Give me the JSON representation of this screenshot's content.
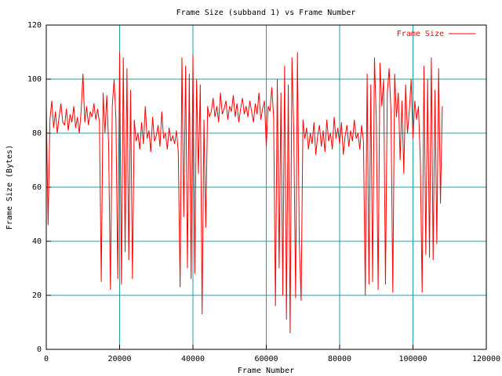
{
  "chart_data": {
    "type": "line",
    "title": "Frame Size (subband 1) vs Frame Number",
    "xlabel": "Frame Number",
    "ylabel": "Frame Size (Bytes)",
    "x": [
      0,
      500,
      1000,
      1500,
      2000,
      2500,
      3000,
      3500,
      4000,
      4500,
      5000,
      5500,
      6000,
      6500,
      7000,
      7500,
      8000,
      8500,
      9000,
      9500,
      10000,
      10500,
      11000,
      11500,
      12000,
      12500,
      13000,
      13500,
      14000,
      14500,
      15000,
      15500,
      16000,
      16500,
      17000,
      17500,
      18000,
      18500,
      19000,
      19500,
      20000,
      20500,
      21000,
      21500,
      22000,
      22500,
      23000,
      23500,
      24000,
      24500,
      25000,
      25500,
      26000,
      26500,
      27000,
      27500,
      28000,
      28500,
      29000,
      29500,
      30000,
      30500,
      31000,
      31500,
      32000,
      32500,
      33000,
      33500,
      34000,
      34500,
      35000,
      35500,
      36000,
      36500,
      37000,
      37500,
      38000,
      38500,
      39000,
      39500,
      40000,
      40500,
      41000,
      41500,
      42000,
      42500,
      43000,
      43500,
      44000,
      44500,
      45000,
      45500,
      46000,
      46500,
      47000,
      47500,
      48000,
      48500,
      49000,
      49500,
      50000,
      50500,
      51000,
      51500,
      52000,
      52500,
      53000,
      53500,
      54000,
      54500,
      55000,
      55500,
      56000,
      56500,
      57000,
      57500,
      58000,
      58500,
      59000,
      59500,
      60000,
      60500,
      61000,
      61500,
      62000,
      62500,
      63000,
      63500,
      64000,
      64500,
      65000,
      65500,
      66000,
      66500,
      67000,
      67500,
      68000,
      68500,
      69000,
      69500,
      70000,
      70500,
      71000,
      71500,
      72000,
      72500,
      73000,
      73500,
      74000,
      74500,
      75000,
      75500,
      76000,
      76500,
      77000,
      77500,
      78000,
      78500,
      79000,
      79500,
      80000,
      80500,
      81000,
      81500,
      82000,
      82500,
      83000,
      83500,
      84000,
      84500,
      85000,
      85500,
      86000,
      86500,
      87000,
      87500,
      88000,
      88500,
      89000,
      89500,
      90000,
      90500,
      91000,
      91500,
      92000,
      92500,
      93000,
      93500,
      94000,
      94500,
      95000,
      95500,
      96000,
      96500,
      97000,
      97500,
      98000,
      98500,
      99000,
      99500,
      100000,
      100500,
      101000,
      101500,
      102000,
      102500,
      103000,
      103500,
      104000,
      104500,
      105000,
      105500,
      106000,
      106500,
      107000,
      107500,
      108000
    ],
    "series": [
      {
        "name": "Frame Size",
        "color": "#ff0000",
        "values": [
          90,
          46,
          85,
          92,
          82,
          88,
          80,
          86,
          91,
          84,
          83,
          89,
          81,
          87,
          84,
          90,
          82,
          86,
          80,
          88,
          102,
          84,
          90,
          83,
          88,
          86,
          91,
          85,
          89,
          84,
          25,
          95,
          80,
          94,
          76,
          22,
          90,
          100,
          85,
          26,
          110,
          24,
          108,
          36,
          104,
          33,
          96,
          26,
          85,
          77,
          80,
          74,
          84,
          76,
          90,
          78,
          81,
          73,
          86,
          77,
          79,
          83,
          75,
          88,
          78,
          80,
          74,
          82,
          77,
          79,
          76,
          81,
          73,
          23,
          108,
          49,
          105,
          30,
          102,
          26,
          109,
          28,
          100,
          65,
          98,
          13,
          85,
          45,
          90,
          86,
          88,
          93,
          86,
          90,
          84,
          95,
          87,
          89,
          92,
          85,
          90,
          88,
          94,
          86,
          91,
          84,
          89,
          93,
          87,
          90,
          86,
          92,
          88,
          84,
          91,
          87,
          95,
          85,
          89,
          92,
          75,
          90,
          88,
          97,
          86,
          16,
          100,
          30,
          95,
          20,
          105,
          11,
          98,
          6,
          108,
          80,
          19,
          110,
          40,
          18,
          85,
          78,
          82,
          74,
          80,
          76,
          84,
          72,
          79,
          83,
          75,
          81,
          73,
          85,
          77,
          80,
          74,
          86,
          78,
          82,
          76,
          84,
          72,
          79,
          83,
          75,
          81,
          77,
          85,
          78,
          80,
          74,
          83,
          77,
          20,
          102,
          24,
          98,
          25,
          108,
          85,
          22,
          106,
          90,
          100,
          24,
          95,
          104,
          88,
          21,
          102,
          86,
          95,
          70,
          92,
          65,
          98,
          80,
          88,
          100,
          78,
          92,
          85,
          90,
          70,
          21,
          105,
          35,
          100,
          34,
          108,
          33,
          96,
          39,
          104,
          54,
          90
        ]
      }
    ],
    "xlim": [
      0,
      120000
    ],
    "xticks": [
      0,
      20000,
      40000,
      60000,
      80000,
      100000,
      120000
    ],
    "ylim": [
      0,
      120
    ],
    "yticks": [
      0,
      20,
      40,
      60,
      80,
      100,
      120
    ],
    "grid": true,
    "grid_color": "#20a0a0",
    "legend": "top-right"
  }
}
